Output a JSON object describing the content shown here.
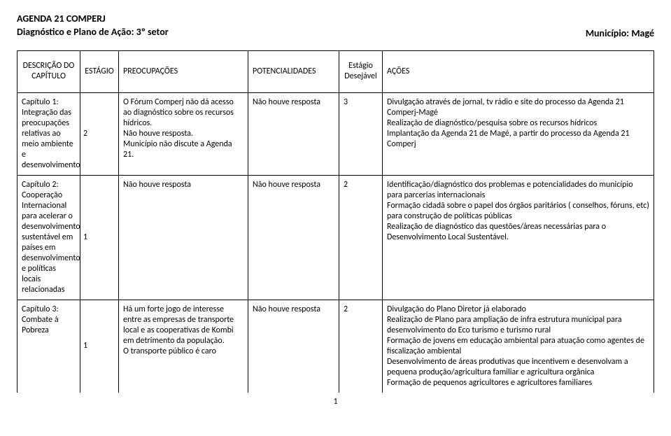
{
  "header": {
    "line1": "AGENDA 21 COMPERJ",
    "line2": "Diagnóstico e Plano de Ação: 3º setor",
    "municipio_label": "Município: Magé"
  },
  "columns": {
    "c1": "DESCRIÇÃO DO CAPÍTULO",
    "c2": "ESTÁGIO",
    "c3": "PREOCUPAÇÕES",
    "c4": "POTENCIALIDADES",
    "c5": "Estágio Desejável",
    "c6": "AÇÕES"
  },
  "rows": [
    {
      "descricao": "Capítulo 1: Integração das preocupações relativas ao meio ambiente e desenvolvimento",
      "estagio": "2",
      "preocupacoes": "O Fórum Comperj não dá acesso ao diagnóstico sobre os recursos hídricos.\nNão houve resposta.\nMunicípio não discute a Agenda 21.",
      "potencialidades": "Não houve resposta",
      "desejavel": "3",
      "acoes": " Divulgação através de jornal, tv rádio e site do processo da Agenda 21 Comperj-Magé\nRealização de diagnóstico/pesquisa sobre os recursos hídricos\n Implantação da Agenda 21 de Magé, a partir do processo da Agenda 21 Comperj"
    },
    {
      "descricao": "Capítulo 2: Cooperação Internacional para acelerar o desenvolvimento sustentável em países em desenvolvimento e políticas locais relacionadas",
      "estagio": "1",
      "preocupacoes": "Não houve resposta",
      "potencialidades": "Não houve resposta",
      "desejavel": "2",
      "acoes": "Identificação/diagnóstico dos problemas e potencialidades do município para parcerias internacionais\n Formação cidadã sobre o papel dos órgãos paritários ( conselhos, fóruns, etc) para construção de políticas públicas\nRealização de diagnóstico das questões/áreas necessárias para o Desenvolvimento Local Sustentável."
    },
    {
      "descricao": "Capítulo 3: Combate à Pobreza",
      "estagio": "1",
      "preocupacoes": "Há um forte jogo de interesse entre as empresas de transporte local e as cooperativas de Kombi em detrimento da população.\nO transporte público é caro",
      "potencialidades": "Não houve resposta",
      "desejavel": "2",
      "acoes": " Divulgação do Plano Diretor já elaborado\nRealização de Plano para ampliação de infra estrutura municipal  para desenvolvimento do Eco turismo e turismo rural\nFormação de jovens em educação ambiental para atuação como agentes de fiscalização ambiental\nDesenvolvimento de áreas produtivas que incentivem e desenvolvam a pequena produção/agricultura familiar e agricultura orgânica\n Formação de pequenos agricultores e agricultores familiares"
    }
  ],
  "page_number": "1"
}
